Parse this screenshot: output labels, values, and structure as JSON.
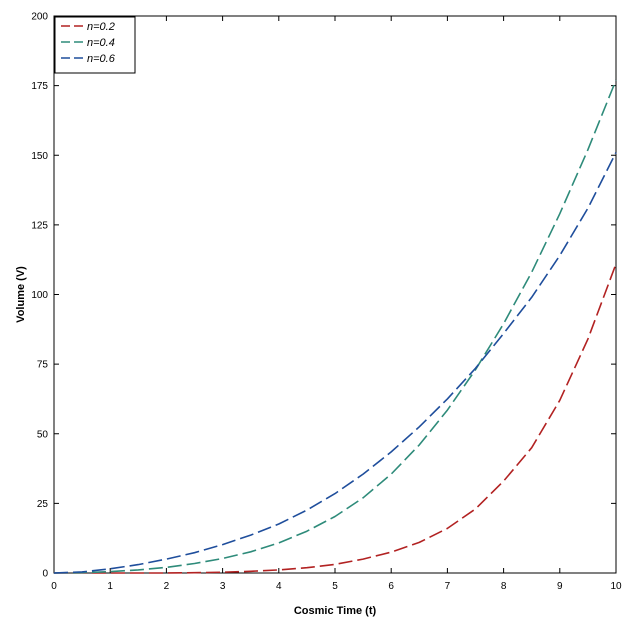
{
  "chart_data": {
    "type": "line",
    "xlabel": "Cosmic Time (t)",
    "ylabel": "Volume (V)",
    "xlim": [
      0,
      10
    ],
    "ylim": [
      0,
      200
    ],
    "xticks": [
      0,
      1,
      2,
      3,
      4,
      5,
      6,
      7,
      8,
      9,
      10
    ],
    "yticks": [
      0,
      25,
      50,
      75,
      100,
      125,
      150,
      175,
      200
    ],
    "x": [
      0,
      0.5,
      1,
      1.5,
      2,
      2.5,
      3,
      3.5,
      4,
      4.5,
      5,
      5.5,
      6,
      6.5,
      7,
      7.5,
      8,
      8.5,
      9,
      9.5,
      10
    ],
    "series": [
      {
        "name": "n=0.2",
        "color": "#b22222",
        "values": [
          0,
          0,
          0,
          0,
          0,
          0.1,
          0.3,
          0.6,
          1.1,
          1.9,
          3.1,
          5,
          7.5,
          11,
          16,
          23,
          33,
          45,
          62,
          84,
          111
        ]
      },
      {
        "name": "n=0.4",
        "color": "#2e8b7a",
        "values": [
          0,
          0.1,
          0.5,
          1.1,
          2,
          3.4,
          5.2,
          7.6,
          10.8,
          15,
          20.3,
          27,
          35.5,
          46,
          58.5,
          73,
          89.5,
          108,
          129,
          152,
          177
        ]
      },
      {
        "name": "n=0.6",
        "color": "#1f4e9c",
        "values": [
          0,
          0.4,
          1.5,
          3,
          5,
          7.3,
          10.2,
          13.6,
          17.6,
          22.6,
          28.5,
          35.5,
          43.5,
          52.5,
          62.5,
          73.5,
          86,
          99,
          114,
          131,
          151
        ]
      }
    ],
    "legend": {
      "position": "top-left"
    },
    "grid": false
  }
}
